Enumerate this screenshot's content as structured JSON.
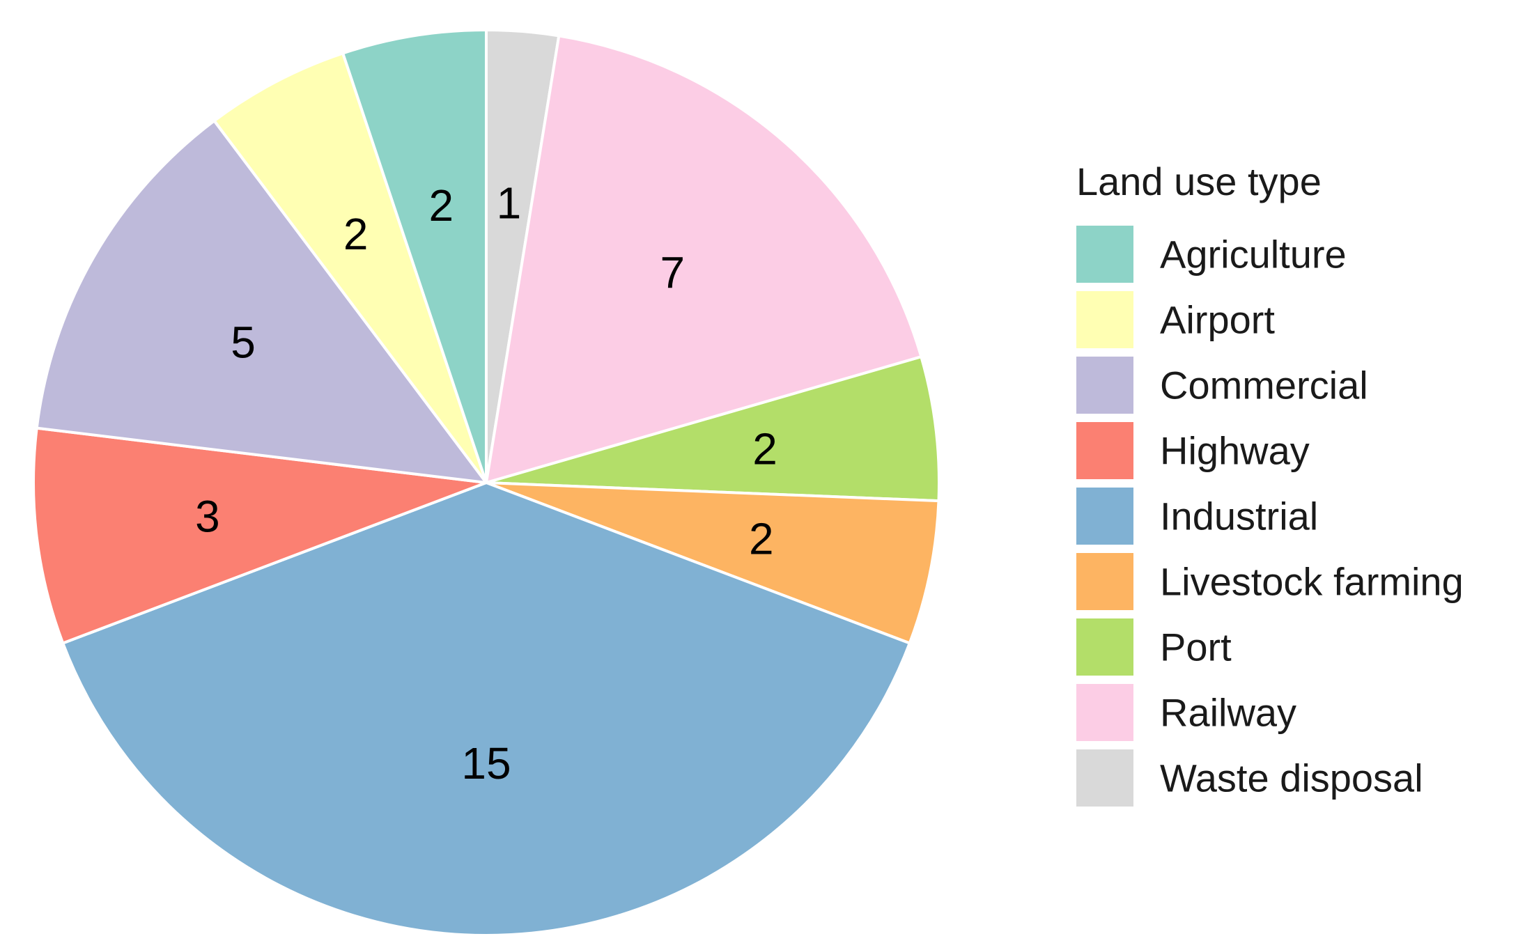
{
  "chart_data": {
    "type": "pie",
    "legend_title": "Land use type",
    "legend_position": "right",
    "start": "top",
    "direction": "clockwise",
    "slices": [
      {
        "label": "Waste disposal",
        "value": 1,
        "color": "#d9d9d9"
      },
      {
        "label": "Railway",
        "value": 7,
        "color": "#fccde5"
      },
      {
        "label": "Port",
        "value": 2,
        "color": "#b3de69"
      },
      {
        "label": "Livestock farming",
        "value": 2,
        "color": "#fdb462"
      },
      {
        "label": "Industrial",
        "value": 15,
        "color": "#80b1d3"
      },
      {
        "label": "Highway",
        "value": 3,
        "color": "#fb8072"
      },
      {
        "label": "Commercial",
        "value": 5,
        "color": "#bebada"
      },
      {
        "label": "Airport",
        "value": 2,
        "color": "#ffffb3"
      },
      {
        "label": "Agriculture",
        "value": 2,
        "color": "#8dd3c7"
      }
    ],
    "legend": [
      {
        "label": "Agriculture",
        "color": "#8dd3c7"
      },
      {
        "label": "Airport",
        "color": "#ffffb3"
      },
      {
        "label": "Commercial",
        "color": "#bebada"
      },
      {
        "label": "Highway",
        "color": "#fb8072"
      },
      {
        "label": "Industrial",
        "color": "#80b1d3"
      },
      {
        "label": "Livestock farming",
        "color": "#fdb462"
      },
      {
        "label": "Port",
        "color": "#b3de69"
      },
      {
        "label": "Railway",
        "color": "#fccde5"
      },
      {
        "label": "Waste disposal",
        "color": "#d9d9d9"
      }
    ]
  }
}
